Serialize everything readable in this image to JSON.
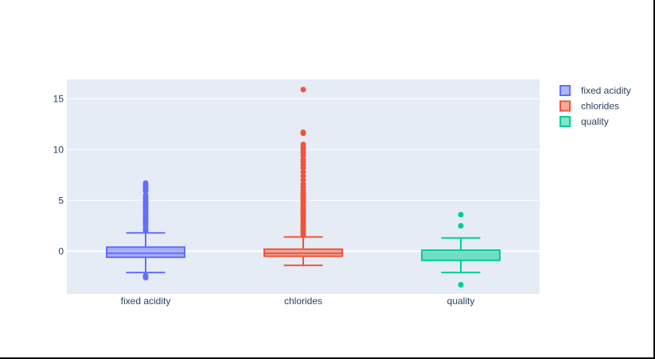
{
  "chart_data": {
    "type": "box",
    "ylim": [
      -4.2,
      16.9
    ],
    "yticks": [
      0,
      5,
      10,
      15
    ],
    "grid": true,
    "legend_position": "top-right",
    "series": [
      {
        "name": "fixed acidity",
        "color": "#636efa",
        "fill": "rgba(99,110,250,0.5)",
        "q1": -0.6,
        "median": -0.2,
        "q3": 0.4,
        "whisker_low": -2.1,
        "whisker_high": 1.8,
        "outliers": [
          -2.6,
          -2.4,
          2.0,
          2.2,
          2.5,
          2.7,
          2.9,
          3.1,
          3.3,
          3.5,
          3.7,
          3.9,
          4.1,
          4.3,
          4.5,
          4.7,
          4.9,
          5.1,
          5.3,
          5.5,
          5.9,
          6.1,
          6.3,
          6.5,
          6.7
        ]
      },
      {
        "name": "chlorides",
        "color": "#ef553b",
        "fill": "rgba(239,85,59,0.5)",
        "q1": -0.5,
        "median": -0.2,
        "q3": 0.2,
        "whisker_low": -1.4,
        "whisker_high": 1.4,
        "outliers": [
          1.6,
          1.8,
          2.0,
          2.2,
          2.4,
          2.6,
          2.8,
          3.0,
          3.2,
          3.4,
          3.6,
          3.8,
          4.0,
          4.2,
          4.4,
          4.6,
          4.8,
          5.0,
          5.2,
          5.4,
          5.6,
          5.8,
          6.0,
          6.3,
          6.6,
          7.0,
          7.4,
          7.8,
          8.2,
          8.5,
          8.8,
          9.0,
          9.4,
          9.7,
          10.0,
          10.2,
          10.5,
          11.6,
          11.7,
          15.9
        ]
      },
      {
        "name": "quality",
        "color": "#00cc96",
        "fill": "rgba(0,204,150,0.5)",
        "q1": -0.9,
        "median": 0.1,
        "q3": 0.1,
        "whisker_low": -2.1,
        "whisker_high": 1.3,
        "outliers": [
          -3.3,
          2.5,
          3.6
        ]
      }
    ]
  }
}
